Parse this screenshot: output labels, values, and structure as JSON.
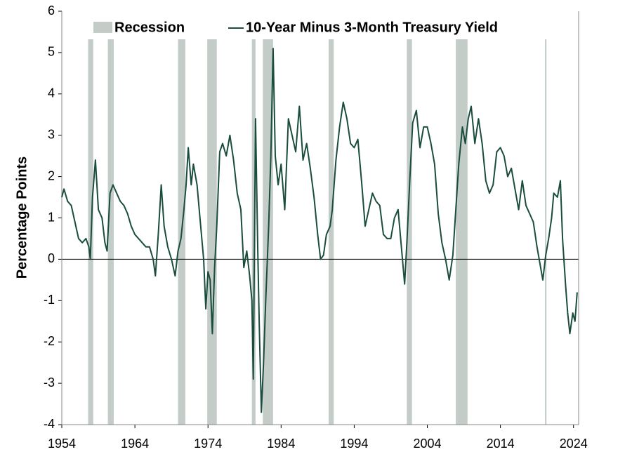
{
  "chart_data": {
    "type": "line",
    "ylabel": "Percentage Points",
    "xlim": [
      1954,
      2024.7
    ],
    "ylim": [
      -4,
      6
    ],
    "xticks": [
      1954,
      1964,
      1974,
      1984,
      1994,
      2004,
      2014,
      2024
    ],
    "yticks": [
      -4,
      -3,
      -2,
      -1,
      0,
      1,
      2,
      3,
      4,
      5,
      6
    ],
    "recessions": {
      "name": "Recession",
      "color": "#c3ccc6",
      "periods": [
        [
          1957.6,
          1958.3
        ],
        [
          1960.3,
          1961.1
        ],
        [
          1969.9,
          1970.9
        ],
        [
          1973.9,
          1975.2
        ],
        [
          1980.0,
          1980.5
        ],
        [
          1981.5,
          1982.9
        ],
        [
          1990.5,
          1991.2
        ],
        [
          2001.2,
          2001.9
        ],
        [
          2007.9,
          2009.5
        ],
        [
          2020.1,
          2020.3
        ]
      ]
    },
    "x": [
      1954.0,
      1954.3,
      1954.8,
      1955.3,
      1955.8,
      1956.3,
      1956.8,
      1957.3,
      1957.7,
      1957.9,
      1958.2,
      1958.6,
      1959.0,
      1959.5,
      1959.9,
      1960.2,
      1960.6,
      1961.0,
      1961.5,
      1962.0,
      1962.5,
      1963.0,
      1963.5,
      1964.0,
      1964.5,
      1965.0,
      1965.5,
      1966.0,
      1966.5,
      1966.8,
      1967.2,
      1967.6,
      1968.0,
      1968.5,
      1969.0,
      1969.5,
      1969.9,
      1970.3,
      1970.7,
      1971.0,
      1971.3,
      1971.7,
      1972.0,
      1972.5,
      1973.0,
      1973.4,
      1973.7,
      1974.0,
      1974.3,
      1974.6,
      1974.9,
      1975.2,
      1975.6,
      1976.0,
      1976.5,
      1977.0,
      1977.5,
      1978.0,
      1978.5,
      1978.9,
      1979.3,
      1979.7,
      1980.0,
      1980.2,
      1980.5,
      1980.8,
      1981.0,
      1981.3,
      1981.6,
      1981.9,
      1982.3,
      1982.6,
      1982.9,
      1983.2,
      1983.6,
      1984.0,
      1984.5,
      1985.0,
      1985.5,
      1986.0,
      1986.5,
      1987.0,
      1987.5,
      1988.0,
      1988.5,
      1989.0,
      1989.4,
      1989.8,
      1990.2,
      1990.7,
      1991.0,
      1991.5,
      1992.0,
      1992.5,
      1993.0,
      1993.5,
      1994.0,
      1994.5,
      1995.0,
      1995.5,
      1996.0,
      1996.5,
      1997.0,
      1997.5,
      1998.0,
      1998.5,
      1999.0,
      1999.5,
      2000.0,
      2000.5,
      2000.9,
      2001.2,
      2001.6,
      2002.0,
      2002.5,
      2003.0,
      2003.5,
      2004.0,
      2004.5,
      2005.0,
      2005.5,
      2006.0,
      2006.5,
      2007.0,
      2007.5,
      2007.9,
      2008.3,
      2008.8,
      2009.2,
      2009.6,
      2010.0,
      2010.5,
      2011.0,
      2011.5,
      2012.0,
      2012.5,
      2013.0,
      2013.5,
      2014.0,
      2014.5,
      2015.0,
      2015.5,
      2016.0,
      2016.5,
      2017.0,
      2017.5,
      2018.0,
      2018.5,
      2019.0,
      2019.5,
      2019.8,
      2020.2,
      2020.6,
      2021.0,
      2021.3,
      2021.8,
      2022.2,
      2022.5,
      2022.9,
      2023.2,
      2023.5,
      2023.9,
      2024.2,
      2024.5
    ],
    "series": [
      {
        "name": "10-Year Minus 3-Month Treasury Yield",
        "color": "#1a4d3e",
        "values": [
          1.5,
          1.7,
          1.4,
          1.3,
          0.9,
          0.5,
          0.4,
          0.5,
          0.3,
          0.0,
          1.5,
          2.4,
          1.2,
          1.0,
          0.4,
          0.2,
          1.6,
          1.8,
          1.6,
          1.4,
          1.3,
          1.1,
          0.8,
          0.6,
          0.5,
          0.4,
          0.3,
          0.3,
          0.0,
          -0.4,
          0.6,
          1.8,
          0.8,
          0.3,
          0.0,
          -0.4,
          0.2,
          0.5,
          1.2,
          1.8,
          2.7,
          1.8,
          2.3,
          1.8,
          0.8,
          0.0,
          -1.2,
          -0.3,
          -0.5,
          -1.8,
          -0.2,
          0.8,
          2.6,
          2.8,
          2.5,
          3.0,
          2.4,
          1.6,
          1.2,
          -0.2,
          0.2,
          -0.4,
          -1.0,
          -2.9,
          3.4,
          0.3,
          -1.5,
          -3.7,
          -2.5,
          -1.0,
          0.8,
          2.5,
          5.1,
          2.5,
          1.8,
          2.3,
          1.2,
          3.4,
          3.0,
          2.6,
          3.7,
          2.4,
          2.8,
          2.2,
          1.5,
          0.6,
          0.0,
          0.1,
          0.6,
          0.8,
          1.2,
          2.4,
          3.2,
          3.8,
          3.4,
          2.8,
          2.7,
          2.9,
          1.9,
          0.8,
          1.2,
          1.6,
          1.4,
          1.3,
          0.6,
          0.5,
          0.5,
          1.0,
          1.2,
          0.2,
          -0.6,
          0.4,
          1.9,
          3.3,
          3.6,
          2.7,
          3.2,
          3.2,
          2.8,
          2.3,
          1.1,
          0.4,
          0.0,
          -0.5,
          0.1,
          1.2,
          2.3,
          3.2,
          2.8,
          3.4,
          3.7,
          2.8,
          3.4,
          2.8,
          1.9,
          1.6,
          1.8,
          2.6,
          2.7,
          2.5,
          2.0,
          2.2,
          1.7,
          1.2,
          1.9,
          1.3,
          1.1,
          0.9,
          0.3,
          -0.2,
          -0.5,
          0.1,
          0.5,
          1.0,
          1.6,
          1.5,
          1.9,
          0.5,
          -0.6,
          -1.3,
          -1.8,
          -1.3,
          -1.5,
          -0.8
        ]
      }
    ]
  }
}
